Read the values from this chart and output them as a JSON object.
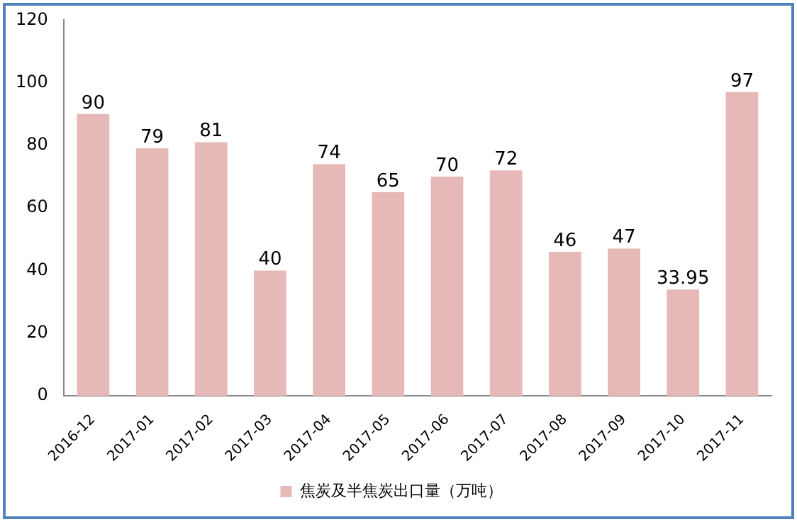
{
  "chart_data": {
    "type": "bar",
    "categories": [
      "2016-12",
      "2017-01",
      "2017-02",
      "2017-03",
      "2017-04",
      "2017-05",
      "2017-06",
      "2017-07",
      "2017-08",
      "2017-09",
      "2017-10",
      "2017-11"
    ],
    "series": [
      {
        "name": "焦炭及半焦炭出口量（万吨）",
        "color": "#e6b9b8",
        "values": [
          90,
          79,
          81,
          40,
          74,
          65,
          70,
          72,
          46,
          47,
          33.95,
          97
        ]
      }
    ],
    "ylim": [
      0,
      120
    ],
    "yticks": [
      0,
      20,
      40,
      60,
      80,
      100,
      120
    ],
    "grid": false,
    "legend": "bottom",
    "data_labels": true
  }
}
